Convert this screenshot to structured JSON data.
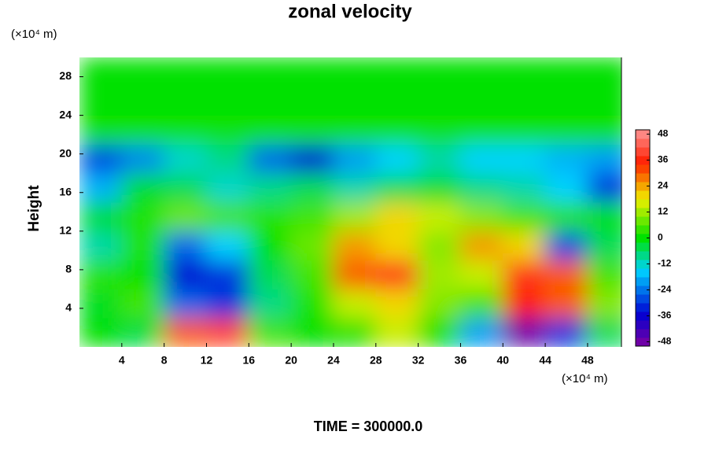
{
  "chart_data": {
    "type": "contour",
    "title": "zonal velocity",
    "ylabel": "Height",
    "xunit": "(×10⁴ m)",
    "yunit": "(×10⁴ m)",
    "footer": "TIME = 300000.0",
    "xlim": [
      0,
      51.2
    ],
    "ylim": [
      0,
      30
    ],
    "xticks": [
      4,
      8,
      12,
      16,
      20,
      24,
      28,
      32,
      36,
      40,
      44,
      48
    ],
    "yticks": [
      4,
      8,
      12,
      16,
      20,
      24,
      28
    ],
    "x": [
      2,
      6,
      10,
      14,
      18,
      22,
      26,
      30,
      34,
      38,
      42,
      46,
      50
    ],
    "y": [
      1.5,
      4.5,
      7.5,
      10.5,
      13.5,
      16.5,
      19.5,
      22.5,
      25.5,
      28.5
    ],
    "z": [
      [
        0,
        -4,
        30,
        40,
        5,
        0,
        2,
        15,
        0,
        -20,
        -48,
        -30,
        -5
      ],
      [
        -2,
        5,
        -25,
        -30,
        -8,
        2,
        15,
        20,
        10,
        5,
        35,
        30,
        10
      ],
      [
        3,
        0,
        -35,
        -30,
        -5,
        5,
        30,
        38,
        12,
        15,
        38,
        30,
        5
      ],
      [
        -10,
        2,
        -25,
        -15,
        0,
        8,
        25,
        20,
        10,
        25,
        20,
        -28,
        -5
      ],
      [
        -3,
        2,
        8,
        5,
        3,
        5,
        12,
        20,
        15,
        10,
        5,
        3,
        0
      ],
      [
        -18,
        -3,
        -5,
        -12,
        -8,
        -5,
        -10,
        -5,
        -3,
        -8,
        -10,
        -15,
        -30
      ],
      [
        -28,
        -22,
        -12,
        -8,
        -25,
        -35,
        -20,
        -15,
        -10,
        -15,
        -15,
        -18,
        -20
      ],
      [
        1,
        1,
        1,
        1,
        1,
        1,
        1,
        1,
        1,
        1,
        1,
        1,
        1
      ],
      [
        0,
        0,
        0,
        0,
        0,
        0,
        0,
        0,
        0,
        0,
        0,
        0,
        0
      ],
      [
        0,
        0,
        0,
        0,
        0,
        0,
        0,
        0,
        0,
        0,
        0,
        0,
        0
      ]
    ],
    "clim": [
      -50,
      50
    ],
    "cticks": [
      -48,
      -36,
      -24,
      -12,
      0,
      12,
      24,
      36,
      48
    ]
  }
}
